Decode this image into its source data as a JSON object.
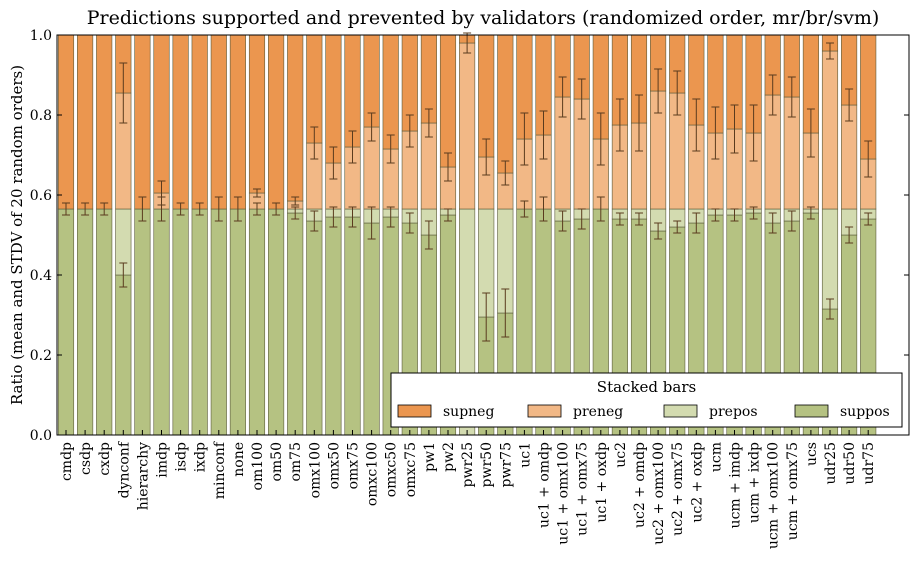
{
  "chart_data": {
    "type": "bar",
    "stacked": true,
    "title": "Predictions supported and prevented by validators (randomized order, mr/br/svm)",
    "ylabel": "Ratio (mean and STDV of 20 random orders)",
    "xlabel": "",
    "ylim": [
      0,
      1.0
    ],
    "yticks": [
      "0.0",
      "0.2",
      "0.4",
      "0.6",
      "0.8",
      "1.0"
    ],
    "grid": false,
    "legend": {
      "title": "Stacked bars",
      "placement": "lower-right",
      "entries": [
        "supneg",
        "preneg",
        "prepos",
        "suppos"
      ]
    },
    "colors": {
      "suppos": "#b5c282",
      "prepos": "#d3dbb0",
      "preneg": "#f2b886",
      "supneg": "#eb964f",
      "edge": "#5a5a3a",
      "errorbar": "#5a3b1e"
    },
    "categories": [
      "cmdp",
      "csdp",
      "cxdp",
      "dynconf",
      "hierarchy",
      "imdp",
      "isdp",
      "ixdp",
      "minconf",
      "none",
      "om100",
      "om50",
      "om75",
      "omx100",
      "omx50",
      "omx75",
      "omxc100",
      "omxc50",
      "omxc75",
      "pw1",
      "pw2",
      "pwr25",
      "pwr50",
      "pwr75",
      "uc1",
      "uc1 + omdp",
      "uc1 + omx100",
      "uc1 + omx75",
      "uc1 + oxdp",
      "uc2",
      "uc2 + omdp",
      "uc2 + omx100",
      "uc2 + omx75",
      "uc2 + oxdp",
      "ucm",
      "ucm + imdp",
      "ucm + ixdp",
      "ucm + omx100",
      "ucm + omx75",
      "ucs",
      "udr25",
      "udr50",
      "udr75"
    ],
    "positive_total": 0.565,
    "series": [
      {
        "name": "suppos",
        "values": [
          0.565,
          0.565,
          0.565,
          0.4,
          0.565,
          0.565,
          0.565,
          0.565,
          0.565,
          0.565,
          0.565,
          0.565,
          0.555,
          0.535,
          0.545,
          0.545,
          0.53,
          0.545,
          0.53,
          0.5,
          0.55,
          0.0,
          0.295,
          0.305,
          0.565,
          0.565,
          0.535,
          0.54,
          0.565,
          0.54,
          0.54,
          0.51,
          0.52,
          0.53,
          0.55,
          0.55,
          0.555,
          0.53,
          0.535,
          0.555,
          0.315,
          0.5,
          0.54
        ],
        "std": [
          0.015,
          0.015,
          0.015,
          0.03,
          0.03,
          0.03,
          0.015,
          0.015,
          0.03,
          0.03,
          0.015,
          0.015,
          0.015,
          0.025,
          0.025,
          0.025,
          0.04,
          0.025,
          0.025,
          0.035,
          0.015,
          0.0,
          0.06,
          0.06,
          0.02,
          0.03,
          0.025,
          0.025,
          0.03,
          0.015,
          0.015,
          0.02,
          0.015,
          0.025,
          0.015,
          0.015,
          0.015,
          0.025,
          0.025,
          0.015,
          0.025,
          0.02,
          0.015
        ]
      },
      {
        "name": "prepos",
        "values": [
          0.0,
          0.0,
          0.0,
          0.165,
          0.0,
          0.0,
          0.0,
          0.0,
          0.0,
          0.0,
          0.0,
          0.0,
          0.01,
          0.03,
          0.02,
          0.02,
          0.035,
          0.02,
          0.035,
          0.065,
          0.015,
          0.565,
          0.27,
          0.26,
          0.0,
          0.0,
          0.03,
          0.025,
          0.0,
          0.025,
          0.025,
          0.055,
          0.045,
          0.035,
          0.015,
          0.015,
          0.01,
          0.035,
          0.03,
          0.01,
          0.25,
          0.065,
          0.025
        ]
      },
      {
        "name": "preneg",
        "values": [
          0.0,
          0.0,
          0.0,
          0.29,
          0.0,
          0.04,
          0.0,
          0.0,
          0.0,
          0.0,
          0.04,
          0.0,
          0.02,
          0.165,
          0.115,
          0.155,
          0.205,
          0.15,
          0.195,
          0.215,
          0.105,
          0.415,
          0.13,
          0.09,
          0.175,
          0.185,
          0.28,
          0.275,
          0.175,
          0.21,
          0.215,
          0.295,
          0.29,
          0.21,
          0.19,
          0.2,
          0.19,
          0.285,
          0.28,
          0.19,
          0.395,
          0.26,
          0.125
        ],
        "std": [
          0.0,
          0.0,
          0.0,
          0.075,
          0.0,
          0.03,
          0.0,
          0.0,
          0.0,
          0.0,
          0.01,
          0.0,
          0.01,
          0.04,
          0.04,
          0.04,
          0.035,
          0.035,
          0.04,
          0.035,
          0.035,
          0.025,
          0.045,
          0.03,
          0.065,
          0.06,
          0.05,
          0.05,
          0.065,
          0.065,
          0.07,
          0.055,
          0.055,
          0.065,
          0.065,
          0.06,
          0.07,
          0.05,
          0.05,
          0.06,
          0.02,
          0.04,
          0.045
        ]
      },
      {
        "name": "supneg",
        "values": [
          0.435,
          0.435,
          0.435,
          0.145,
          0.435,
          0.395,
          0.435,
          0.435,
          0.435,
          0.435,
          0.395,
          0.435,
          0.415,
          0.27,
          0.32,
          0.28,
          0.23,
          0.285,
          0.24,
          0.22,
          0.33,
          0.02,
          0.305,
          0.345,
          0.26,
          0.25,
          0.155,
          0.16,
          0.26,
          0.225,
          0.22,
          0.14,
          0.145,
          0.225,
          0.245,
          0.235,
          0.245,
          0.15,
          0.155,
          0.245,
          0.04,
          0.175,
          0.31
        ]
      }
    ]
  }
}
